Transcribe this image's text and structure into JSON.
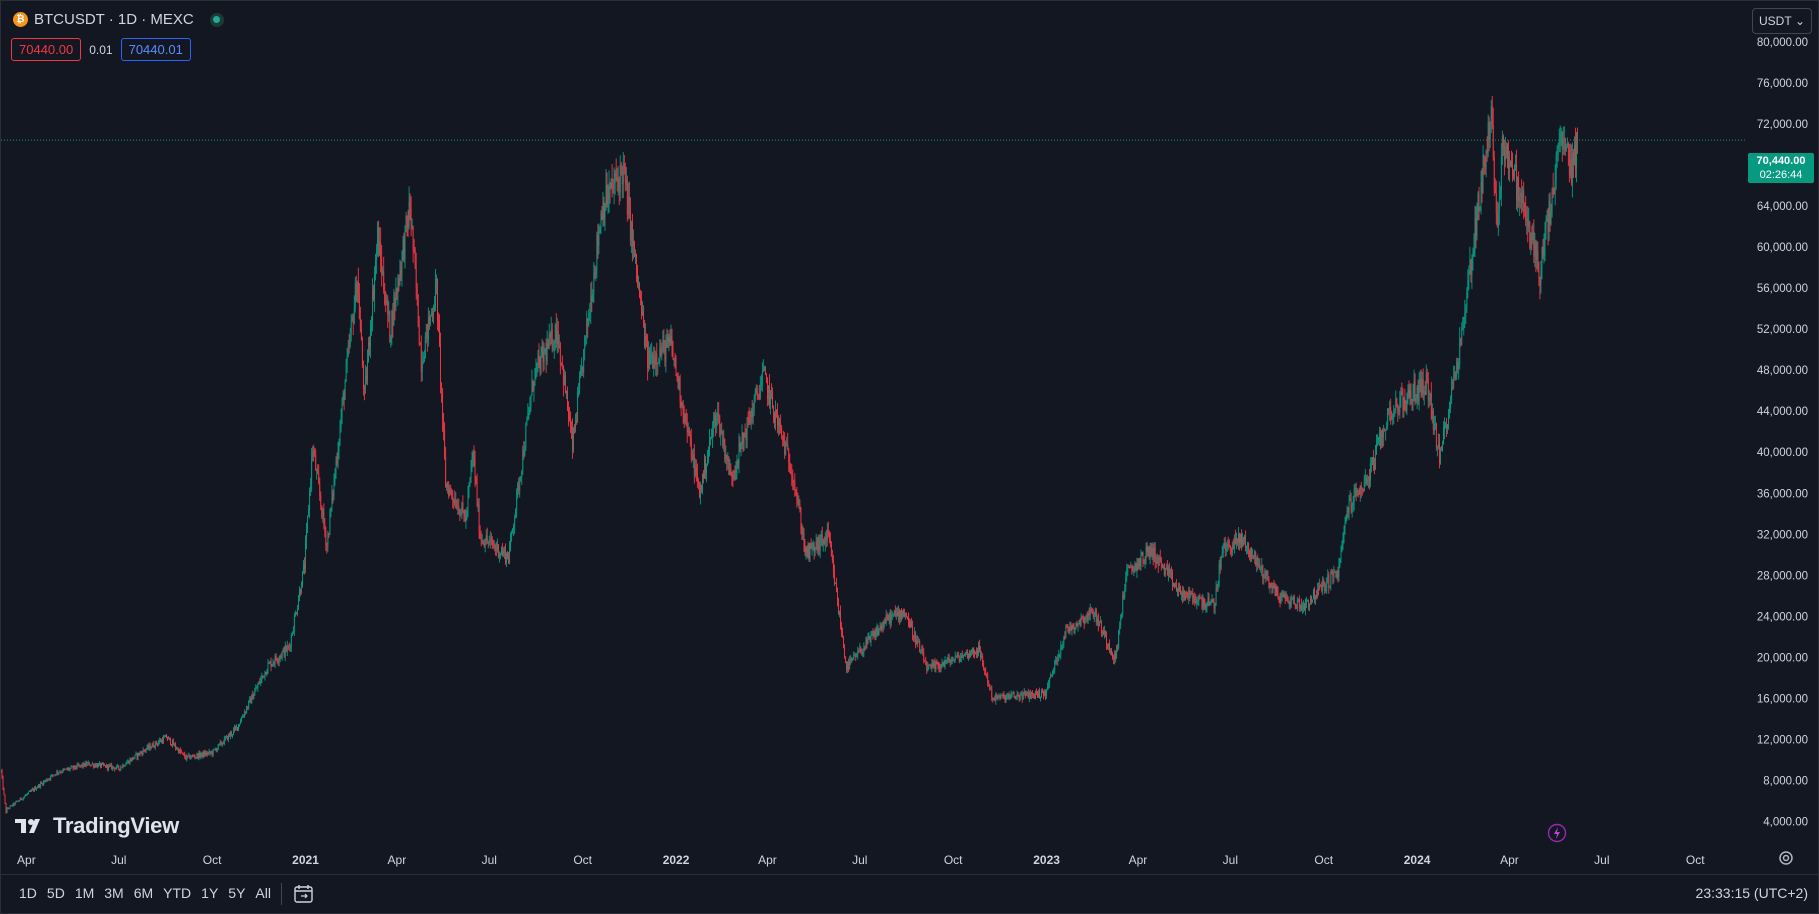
{
  "header": {
    "coin_icon": "bitcoin-icon",
    "title": "BTCUSDT · 1D · MEXC",
    "status_icon": "market-open-icon"
  },
  "quotes": {
    "sell": "70440.00",
    "spread": "0.01",
    "buy": "70440.01"
  },
  "currency_selector": {
    "value": "USDT",
    "chevron": "⌄"
  },
  "last_price": {
    "price": "70,440.00",
    "countdown": "02:26:44"
  },
  "branding": {
    "logo_icon": "tradingview-logo-icon",
    "name": "TradingView"
  },
  "bottom_bar": {
    "ranges": [
      "1D",
      "5D",
      "1M",
      "3M",
      "6M",
      "YTD",
      "1Y",
      "5Y",
      "All"
    ],
    "calendar_icon": "goto-date-icon",
    "clock": "23:33:15 (UTC+2)"
  },
  "colors": {
    "background": "#131722",
    "up": "#089981",
    "down": "#f23645",
    "grid_text": "#d1d4dc",
    "last_price_line": "#089981"
  },
  "chart_data": {
    "type": "candlestick",
    "symbol": "BTCUSDT",
    "interval": "1D",
    "exchange": "MEXC",
    "y_axis": {
      "side": "right",
      "ylim": [
        1800,
        84000
      ],
      "ticks": [
        "4,000.00",
        "8,000.00",
        "12,000.00",
        "16,000.00",
        "20,000.00",
        "24,000.00",
        "28,000.00",
        "32,000.00",
        "36,000.00",
        "40,000.00",
        "44,000.00",
        "48,000.00",
        "52,000.00",
        "56,000.00",
        "60,000.00",
        "64,000.00",
        "68,000.00",
        "72,000.00",
        "76,000.00",
        "80,000.00"
      ]
    },
    "x_axis": {
      "xlim": [
        "2020-03-07",
        "2024-11-20"
      ],
      "ticks": [
        {
          "label": "Apr",
          "date": "2020-04-01",
          "bold": false
        },
        {
          "label": "Jul",
          "date": "2020-07-01",
          "bold": false
        },
        {
          "label": "Oct",
          "date": "2020-10-01",
          "bold": false
        },
        {
          "label": "2021",
          "date": "2021-01-01",
          "bold": true
        },
        {
          "label": "Apr",
          "date": "2021-04-01",
          "bold": false
        },
        {
          "label": "Jul",
          "date": "2021-07-01",
          "bold": false
        },
        {
          "label": "Oct",
          "date": "2021-10-01",
          "bold": false
        },
        {
          "label": "2022",
          "date": "2022-01-01",
          "bold": true
        },
        {
          "label": "Apr",
          "date": "2022-04-01",
          "bold": false
        },
        {
          "label": "Jul",
          "date": "2022-07-01",
          "bold": false
        },
        {
          "label": "Oct",
          "date": "2022-10-01",
          "bold": false
        },
        {
          "label": "2023",
          "date": "2023-01-01",
          "bold": true
        },
        {
          "label": "Apr",
          "date": "2023-04-01",
          "bold": false
        },
        {
          "label": "Jul",
          "date": "2023-07-01",
          "bold": false
        },
        {
          "label": "Oct",
          "date": "2023-10-01",
          "bold": false
        },
        {
          "label": "2024",
          "date": "2024-01-01",
          "bold": true
        },
        {
          "label": "Apr",
          "date": "2024-04-01",
          "bold": false
        },
        {
          "label": "Jul",
          "date": "2024-07-01",
          "bold": false
        },
        {
          "label": "Oct",
          "date": "2024-10-01",
          "bold": false
        }
      ]
    },
    "last_price": 70440,
    "close_path": [
      [
        "2020-03-07",
        8900
      ],
      [
        "2020-03-12",
        4900
      ],
      [
        "2020-03-13",
        5200
      ],
      [
        "2020-04-01",
        6600
      ],
      [
        "2020-05-01",
        8800
      ],
      [
        "2020-06-01",
        9600
      ],
      [
        "2020-07-01",
        9200
      ],
      [
        "2020-07-27",
        11000
      ],
      [
        "2020-08-17",
        12200
      ],
      [
        "2020-09-05",
        10200
      ],
      [
        "2020-10-01",
        10700
      ],
      [
        "2020-10-25",
        13100
      ],
      [
        "2020-11-25",
        19200
      ],
      [
        "2020-12-16",
        21000
      ],
      [
        "2020-12-31",
        29000
      ],
      [
        "2021-01-08",
        40500
      ],
      [
        "2021-01-22",
        30900
      ],
      [
        "2021-02-08",
        46000
      ],
      [
        "2021-02-21",
        57000
      ],
      [
        "2021-02-28",
        45200
      ],
      [
        "2021-03-13",
        61000
      ],
      [
        "2021-03-25",
        51800
      ],
      [
        "2021-04-14",
        64000
      ],
      [
        "2021-04-25",
        49000
      ],
      [
        "2021-05-10",
        56000
      ],
      [
        "2021-05-19",
        37000
      ],
      [
        "2021-06-08",
        33500
      ],
      [
        "2021-06-15",
        40000
      ],
      [
        "2021-06-22",
        31800
      ],
      [
        "2021-07-20",
        29800
      ],
      [
        "2021-08-14",
        47500
      ],
      [
        "2021-09-06",
        52000
      ],
      [
        "2021-09-21",
        40600
      ],
      [
        "2021-10-20",
        64000
      ],
      [
        "2021-11-10",
        67500
      ],
      [
        "2021-12-04",
        49000
      ],
      [
        "2021-12-27",
        50500
      ],
      [
        "2022-01-24",
        36000
      ],
      [
        "2022-02-10",
        44000
      ],
      [
        "2022-02-24",
        37500
      ],
      [
        "2022-03-28",
        47500
      ],
      [
        "2022-04-26",
        38000
      ],
      [
        "2022-05-09",
        30000
      ],
      [
        "2022-05-31",
        31800
      ],
      [
        "2022-06-18",
        19000
      ],
      [
        "2022-07-29",
        23800
      ],
      [
        "2022-08-14",
        24500
      ],
      [
        "2022-09-06",
        18800
      ],
      [
        "2022-10-26",
        20800
      ],
      [
        "2022-11-09",
        16000
      ],
      [
        "2022-12-31",
        16500
      ],
      [
        "2023-01-20",
        22600
      ],
      [
        "2023-02-16",
        24500
      ],
      [
        "2023-03-10",
        19800
      ],
      [
        "2023-03-20",
        28000
      ],
      [
        "2023-04-14",
        30500
      ],
      [
        "2023-05-12",
        26300
      ],
      [
        "2023-06-15",
        25000
      ],
      [
        "2023-06-23",
        30500
      ],
      [
        "2023-07-13",
        31500
      ],
      [
        "2023-08-17",
        26000
      ],
      [
        "2023-09-11",
        25000
      ],
      [
        "2023-10-16",
        28500
      ],
      [
        "2023-10-24",
        34500
      ],
      [
        "2023-11-15",
        37800
      ],
      [
        "2023-12-05",
        44000
      ],
      [
        "2024-01-11",
        46800
      ],
      [
        "2024-01-23",
        39300
      ],
      [
        "2024-02-14",
        51500
      ],
      [
        "2024-02-28",
        62500
      ],
      [
        "2024-03-14",
        73000
      ],
      [
        "2024-03-19",
        62000
      ],
      [
        "2024-03-26",
        70500
      ],
      [
        "2024-04-13",
        64500
      ],
      [
        "2024-05-01",
        57500
      ],
      [
        "2024-05-15",
        66000
      ],
      [
        "2024-05-21",
        70500
      ],
      [
        "2024-06-02",
        67700
      ],
      [
        "2024-06-07",
        70440
      ]
    ]
  }
}
